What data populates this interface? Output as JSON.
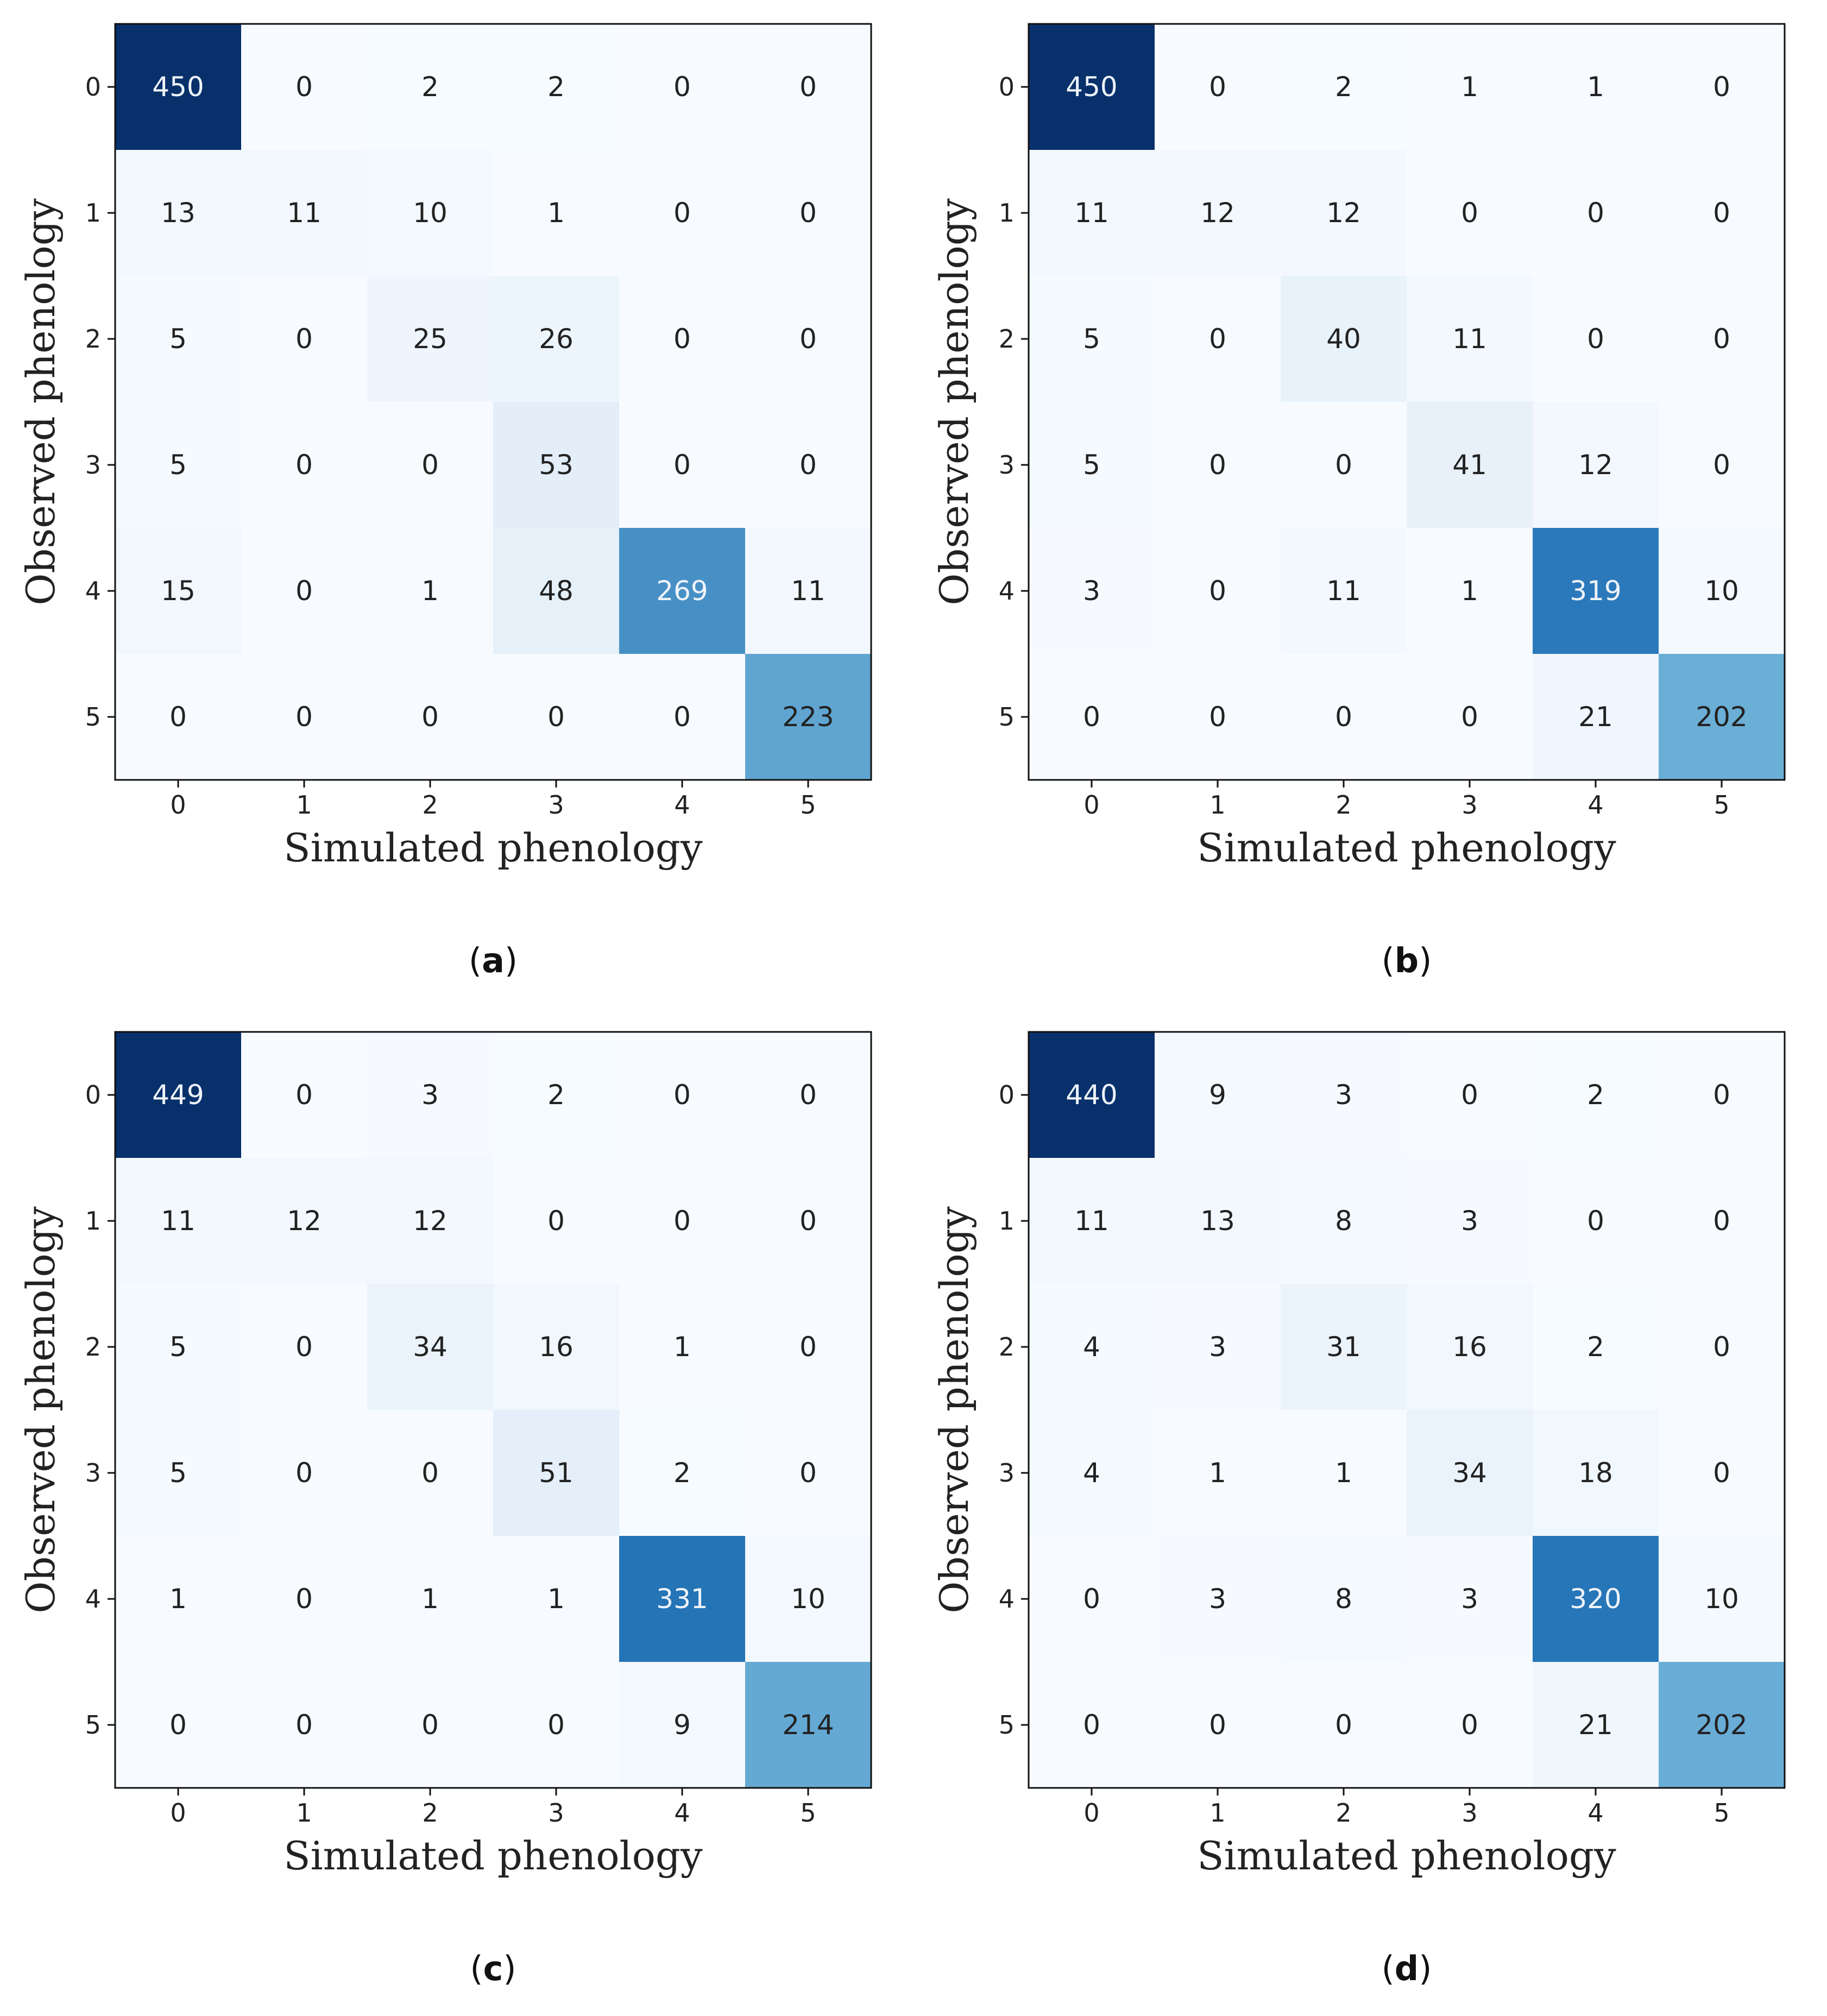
{
  "figure": {
    "colormap": {
      "low": "#f7fbff",
      "mid": "#6baed6",
      "high": "#08306b"
    },
    "text_dark": "#222222",
    "text_light": "#eef3f8"
  },
  "chart_data": [
    {
      "type": "heatmap",
      "panel_label": "a",
      "caption_open": "(",
      "caption_close": ")",
      "title": "",
      "xlabel": "Simulated phenology",
      "ylabel": "Observed phenology",
      "x_ticks": [
        "0",
        "1",
        "2",
        "3",
        "4",
        "5"
      ],
      "y_ticks": [
        "0",
        "1",
        "2",
        "3",
        "4",
        "5"
      ],
      "vmax": 450,
      "matrix": [
        [
          450,
          0,
          2,
          2,
          0,
          0
        ],
        [
          13,
          11,
          10,
          1,
          0,
          0
        ],
        [
          5,
          0,
          25,
          26,
          0,
          0
        ],
        [
          5,
          0,
          0,
          53,
          0,
          0
        ],
        [
          15,
          0,
          1,
          48,
          269,
          11
        ],
        [
          0,
          0,
          0,
          0,
          0,
          223
        ]
      ]
    },
    {
      "type": "heatmap",
      "panel_label": "b",
      "caption_open": "(",
      "caption_close": ")",
      "title": "",
      "xlabel": "Simulated phenology",
      "ylabel": "Observed phenology",
      "x_ticks": [
        "0",
        "1",
        "2",
        "3",
        "4",
        "5"
      ],
      "y_ticks": [
        "0",
        "1",
        "2",
        "3",
        "4",
        "5"
      ],
      "vmax": 450,
      "matrix": [
        [
          450,
          0,
          2,
          1,
          1,
          0
        ],
        [
          11,
          12,
          12,
          0,
          0,
          0
        ],
        [
          5,
          0,
          40,
          11,
          0,
          0
        ],
        [
          5,
          0,
          0,
          41,
          12,
          0
        ],
        [
          3,
          0,
          11,
          1,
          319,
          10
        ],
        [
          0,
          0,
          0,
          0,
          21,
          202
        ]
      ]
    },
    {
      "type": "heatmap",
      "panel_label": "c",
      "caption_open": "(",
      "caption_close": ")",
      "title": "",
      "xlabel": "Simulated phenology",
      "ylabel": "Observed phenology",
      "x_ticks": [
        "0",
        "1",
        "2",
        "3",
        "4",
        "5"
      ],
      "y_ticks": [
        "0",
        "1",
        "2",
        "3",
        "4",
        "5"
      ],
      "vmax": 449,
      "matrix": [
        [
          449,
          0,
          3,
          2,
          0,
          0
        ],
        [
          11,
          12,
          12,
          0,
          0,
          0
        ],
        [
          5,
          0,
          34,
          16,
          1,
          0
        ],
        [
          5,
          0,
          0,
          51,
          2,
          0
        ],
        [
          1,
          0,
          1,
          1,
          331,
          10
        ],
        [
          0,
          0,
          0,
          0,
          9,
          214
        ]
      ]
    },
    {
      "type": "heatmap",
      "panel_label": "d",
      "caption_open": "(",
      "caption_close": ")",
      "title": "",
      "xlabel": "Simulated phenology",
      "ylabel": "Observed phenology",
      "x_ticks": [
        "0",
        "1",
        "2",
        "3",
        "4",
        "5"
      ],
      "y_ticks": [
        "0",
        "1",
        "2",
        "3",
        "4",
        "5"
      ],
      "vmax": 440,
      "matrix": [
        [
          440,
          9,
          3,
          0,
          2,
          0
        ],
        [
          11,
          13,
          8,
          3,
          0,
          0
        ],
        [
          4,
          3,
          31,
          16,
          2,
          0
        ],
        [
          4,
          1,
          1,
          34,
          18,
          0
        ],
        [
          0,
          3,
          8,
          3,
          320,
          10
        ],
        [
          0,
          0,
          0,
          0,
          21,
          202
        ]
      ]
    }
  ]
}
